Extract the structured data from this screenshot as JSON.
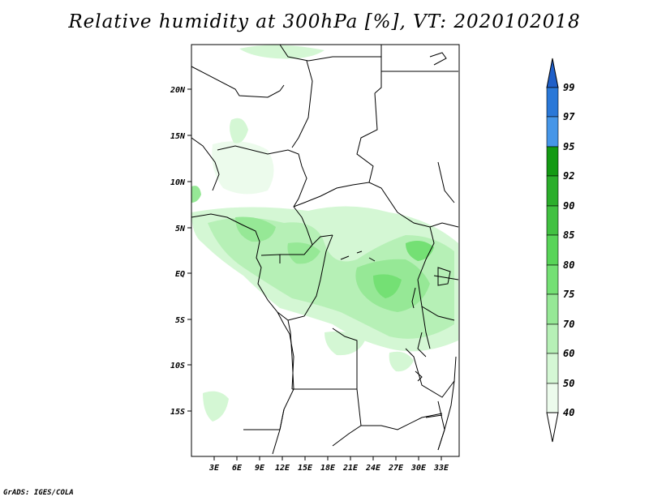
{
  "title": "Relative humidity at 300hPa [%], VT: 2020102018",
  "credit": "GrADS: IGES/COLA",
  "map": {
    "lon_ticks": [
      "3E",
      "6E",
      "9E",
      "12E",
      "15E",
      "18E",
      "21E",
      "24E",
      "27E",
      "30E",
      "33E"
    ],
    "lat_ticks": [
      "20N",
      "15N",
      "10N",
      "5N",
      "EQ",
      "5S",
      "10S",
      "15S"
    ]
  },
  "colorbar": {
    "labels": [
      "99",
      "97",
      "95",
      "92",
      "90",
      "85",
      "80",
      "75",
      "70",
      "60",
      "50",
      "40"
    ],
    "colors": [
      "#1f5fc8",
      "#2a78d8",
      "#4696e8",
      "#139a13",
      "#2bae2b",
      "#41c141",
      "#58d458",
      "#74e074",
      "#96e896",
      "#b6f0b6",
      "#d4f7d4",
      "#ecfbec"
    ]
  },
  "field": {
    "variable": "Relative humidity",
    "level": "300hPa",
    "units": "%",
    "valid_time": "2020102018"
  }
}
